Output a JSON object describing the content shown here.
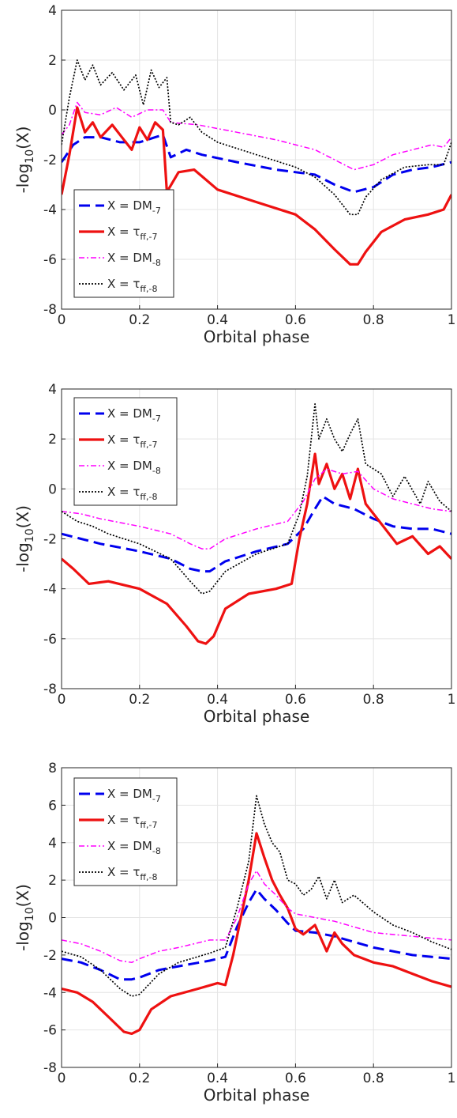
{
  "figure": {
    "panels_note_none": ""
  },
  "chart_data": [
    {
      "type": "line",
      "xlabel": "Orbital phase",
      "ylabel": "-log10(X)",
      "xlim": [
        0,
        1
      ],
      "ylim": [
        -8,
        4
      ],
      "xticks": [
        "0",
        "0.2",
        "0.4",
        "0.6",
        "0.8",
        "1"
      ],
      "yticks": [
        "-8",
        "-6",
        "-4",
        "-2",
        "0",
        "2",
        "4"
      ],
      "grid": true,
      "legend_position": "bottom-left",
      "series": [
        {
          "name": "X = DM-7",
          "color": "#0000ee",
          "style": "dashed",
          "x": [
            0,
            0.03,
            0.06,
            0.1,
            0.15,
            0.2,
            0.24,
            0.26,
            0.28,
            0.32,
            0.36,
            0.45,
            0.55,
            0.65,
            0.7,
            0.75,
            0.8,
            0.85,
            0.9,
            0.95,
            1
          ],
          "y": [
            -2.1,
            -1.4,
            -1.1,
            -1.1,
            -1.3,
            -1.3,
            -1.1,
            -1.0,
            -1.9,
            -1.6,
            -1.8,
            -2.1,
            -2.4,
            -2.6,
            -3.0,
            -3.3,
            -3.1,
            -2.6,
            -2.4,
            -2.3,
            -2.1
          ]
        },
        {
          "name": "X = τff,-7",
          "color": "#ee1111",
          "style": "solid",
          "x": [
            0,
            0.02,
            0.04,
            0.06,
            0.08,
            0.1,
            0.13,
            0.16,
            0.18,
            0.2,
            0.22,
            0.24,
            0.26,
            0.27,
            0.3,
            0.34,
            0.4,
            0.5,
            0.6,
            0.65,
            0.7,
            0.74,
            0.76,
            0.78,
            0.82,
            0.88,
            0.94,
            0.98,
            1
          ],
          "y": [
            -3.4,
            -1.8,
            0.1,
            -0.9,
            -0.5,
            -1.1,
            -0.6,
            -1.2,
            -1.6,
            -0.7,
            -1.2,
            -0.5,
            -0.8,
            -3.3,
            -2.5,
            -2.4,
            -3.2,
            -3.7,
            -4.2,
            -4.8,
            -5.6,
            -6.2,
            -6.2,
            -5.7,
            -4.9,
            -4.4,
            -4.2,
            -4.0,
            -3.4
          ]
        },
        {
          "name": "X = DM-8",
          "color": "#ff00ff",
          "style": "dashdot",
          "x": [
            0,
            0.02,
            0.04,
            0.06,
            0.1,
            0.14,
            0.18,
            0.22,
            0.26,
            0.28,
            0.35,
            0.45,
            0.55,
            0.65,
            0.7,
            0.75,
            0.8,
            0.85,
            0.9,
            0.95,
            0.98,
            1
          ],
          "y": [
            -1.0,
            -0.6,
            0.3,
            -0.1,
            -0.2,
            0.1,
            -0.3,
            0.0,
            0.0,
            -0.5,
            -0.6,
            -0.9,
            -1.2,
            -1.6,
            -2.0,
            -2.4,
            -2.2,
            -1.8,
            -1.6,
            -1.4,
            -1.5,
            -1.1
          ]
        },
        {
          "name": "X = τff,-8",
          "color": "#000000",
          "style": "dotted",
          "x": [
            0,
            0.02,
            0.04,
            0.06,
            0.08,
            0.1,
            0.13,
            0.16,
            0.19,
            0.21,
            0.23,
            0.25,
            0.27,
            0.28,
            0.3,
            0.33,
            0.36,
            0.4,
            0.5,
            0.6,
            0.65,
            0.7,
            0.74,
            0.76,
            0.78,
            0.82,
            0.88,
            0.94,
            0.98,
            1
          ],
          "y": [
            -1.4,
            0.5,
            2.0,
            1.2,
            1.8,
            1.0,
            1.5,
            0.8,
            1.4,
            0.2,
            1.6,
            0.9,
            1.3,
            -0.5,
            -0.6,
            -0.3,
            -0.9,
            -1.3,
            -1.8,
            -2.3,
            -2.7,
            -3.4,
            -4.2,
            -4.2,
            -3.5,
            -2.8,
            -2.3,
            -2.2,
            -2.2,
            -1.3
          ]
        }
      ]
    },
    {
      "type": "line",
      "xlabel": "Orbital phase",
      "ylabel": "-log10(X)",
      "xlim": [
        0,
        1
      ],
      "ylim": [
        -8,
        4
      ],
      "xticks": [
        "0",
        "0.2",
        "0.4",
        "0.6",
        "0.8",
        "1"
      ],
      "yticks": [
        "-8",
        "-6",
        "-4",
        "-2",
        "0",
        "2",
        "4"
      ],
      "grid": true,
      "legend_position": "top-left",
      "series": [
        {
          "name": "X = DM-7",
          "color": "#0000ee",
          "style": "dashed",
          "x": [
            0,
            0.05,
            0.1,
            0.2,
            0.28,
            0.33,
            0.36,
            0.38,
            0.42,
            0.5,
            0.58,
            0.62,
            0.65,
            0.67,
            0.7,
            0.75,
            0.8,
            0.85,
            0.9,
            0.95,
            1
          ],
          "y": [
            -1.8,
            -2.0,
            -2.2,
            -2.5,
            -2.8,
            -3.2,
            -3.3,
            -3.3,
            -2.9,
            -2.5,
            -2.2,
            -1.6,
            -0.8,
            -0.3,
            -0.6,
            -0.8,
            -1.2,
            -1.5,
            -1.6,
            -1.6,
            -1.8
          ]
        },
        {
          "name": "X = τff,-7",
          "color": "#ee1111",
          "style": "solid",
          "x": [
            0,
            0.03,
            0.07,
            0.12,
            0.2,
            0.27,
            0.32,
            0.35,
            0.37,
            0.39,
            0.42,
            0.48,
            0.55,
            0.59,
            0.61,
            0.63,
            0.65,
            0.66,
            0.68,
            0.7,
            0.72,
            0.74,
            0.76,
            0.78,
            0.82,
            0.86,
            0.9,
            0.94,
            0.97,
            1
          ],
          "y": [
            -2.8,
            -3.2,
            -3.8,
            -3.7,
            -4.0,
            -4.6,
            -5.5,
            -6.1,
            -6.2,
            -5.9,
            -4.8,
            -4.2,
            -4.0,
            -3.8,
            -2.0,
            -0.6,
            1.4,
            0.2,
            1.0,
            0.0,
            0.6,
            -0.4,
            0.8,
            -0.6,
            -1.4,
            -2.2,
            -1.9,
            -2.6,
            -2.3,
            -2.8
          ]
        },
        {
          "name": "X = DM-8",
          "color": "#ff00ff",
          "style": "dashdot",
          "x": [
            0,
            0.05,
            0.1,
            0.2,
            0.28,
            0.33,
            0.36,
            0.38,
            0.42,
            0.5,
            0.58,
            0.62,
            0.65,
            0.68,
            0.72,
            0.76,
            0.8,
            0.85,
            0.9,
            0.95,
            1
          ],
          "y": [
            -0.9,
            -1.0,
            -1.2,
            -1.5,
            -1.8,
            -2.2,
            -2.4,
            -2.4,
            -2.0,
            -1.6,
            -1.3,
            -0.5,
            0.4,
            0.8,
            0.6,
            0.7,
            0.0,
            -0.4,
            -0.6,
            -0.8,
            -0.9
          ]
        },
        {
          "name": "X = τff,-8",
          "color": "#000000",
          "style": "dotted",
          "x": [
            0,
            0.04,
            0.08,
            0.12,
            0.2,
            0.28,
            0.33,
            0.36,
            0.38,
            0.42,
            0.5,
            0.58,
            0.61,
            0.63,
            0.65,
            0.66,
            0.68,
            0.7,
            0.72,
            0.74,
            0.76,
            0.78,
            0.82,
            0.85,
            0.88,
            0.92,
            0.94,
            0.97,
            1
          ],
          "y": [
            -0.9,
            -1.3,
            -1.5,
            -1.8,
            -2.2,
            -2.8,
            -3.7,
            -4.2,
            -4.1,
            -3.3,
            -2.6,
            -2.2,
            -1.0,
            0.5,
            3.4,
            2.0,
            2.8,
            2.0,
            1.5,
            2.2,
            2.8,
            1.0,
            0.6,
            -0.3,
            0.5,
            -0.6,
            0.3,
            -0.5,
            -0.9
          ]
        }
      ]
    },
    {
      "type": "line",
      "xlabel": "Orbital phase",
      "ylabel": "-log10(X)",
      "xlim": [
        0,
        1
      ],
      "ylim": [
        -8,
        8
      ],
      "xticks": [
        "0",
        "0.2",
        "0.4",
        "0.6",
        "0.8",
        "1"
      ],
      "yticks": [
        "-8",
        "-6",
        "-4",
        "-2",
        "0",
        "2",
        "4",
        "6",
        "8"
      ],
      "grid": true,
      "legend_position": "top-left",
      "series": [
        {
          "name": "X = DM-7",
          "color": "#0000ee",
          "style": "dashed",
          "x": [
            0,
            0.05,
            0.1,
            0.15,
            0.18,
            0.2,
            0.25,
            0.3,
            0.38,
            0.42,
            0.45,
            0.48,
            0.5,
            0.52,
            0.55,
            0.58,
            0.6,
            0.65,
            0.7,
            0.75,
            0.8,
            0.9,
            1
          ],
          "y": [
            -2.2,
            -2.4,
            -2.8,
            -3.3,
            -3.3,
            -3.2,
            -2.8,
            -2.6,
            -2.3,
            -2.1,
            -0.5,
            0.8,
            1.5,
            1.0,
            0.4,
            -0.3,
            -0.7,
            -0.8,
            -1.0,
            -1.3,
            -1.6,
            -2.0,
            -2.2
          ]
        },
        {
          "name": "X = τff,-7",
          "color": "#ee1111",
          "style": "solid",
          "x": [
            0,
            0.04,
            0.08,
            0.12,
            0.16,
            0.18,
            0.2,
            0.23,
            0.28,
            0.35,
            0.4,
            0.42,
            0.44,
            0.46,
            0.48,
            0.5,
            0.52,
            0.54,
            0.56,
            0.58,
            0.6,
            0.62,
            0.65,
            0.68,
            0.7,
            0.72,
            0.75,
            0.8,
            0.85,
            0.9,
            0.95,
            1
          ],
          "y": [
            -3.8,
            -4.0,
            -4.5,
            -5.3,
            -6.1,
            -6.2,
            -6.0,
            -4.9,
            -4.2,
            -3.8,
            -3.5,
            -3.6,
            -2.0,
            0.0,
            2.0,
            4.5,
            3.2,
            2.0,
            1.2,
            0.5,
            -0.6,
            -0.9,
            -0.4,
            -1.8,
            -0.8,
            -1.4,
            -2.0,
            -2.4,
            -2.6,
            -3.0,
            -3.4,
            -3.7
          ]
        },
        {
          "name": "X = DM-8",
          "color": "#ff00ff",
          "style": "dashdot",
          "x": [
            0,
            0.05,
            0.1,
            0.15,
            0.18,
            0.2,
            0.25,
            0.3,
            0.38,
            0.42,
            0.45,
            0.48,
            0.5,
            0.52,
            0.55,
            0.58,
            0.6,
            0.65,
            0.7,
            0.75,
            0.8,
            0.9,
            1
          ],
          "y": [
            -1.2,
            -1.4,
            -1.8,
            -2.3,
            -2.4,
            -2.2,
            -1.8,
            -1.6,
            -1.2,
            -1.2,
            0.0,
            1.8,
            2.5,
            1.8,
            1.2,
            0.5,
            0.2,
            0.0,
            -0.2,
            -0.5,
            -0.8,
            -1.0,
            -1.2
          ]
        },
        {
          "name": "X = τff,-8",
          "color": "#000000",
          "style": "dotted",
          "x": [
            0,
            0.05,
            0.1,
            0.15,
            0.18,
            0.2,
            0.25,
            0.3,
            0.38,
            0.42,
            0.45,
            0.48,
            0.5,
            0.52,
            0.54,
            0.56,
            0.58,
            0.6,
            0.62,
            0.64,
            0.66,
            0.68,
            0.7,
            0.72,
            0.75,
            0.8,
            0.85,
            0.9,
            0.95,
            1
          ],
          "y": [
            -1.8,
            -2.1,
            -2.8,
            -3.8,
            -4.2,
            -4.1,
            -3.0,
            -2.4,
            -1.9,
            -1.6,
            0.5,
            3.0,
            6.5,
            5.0,
            4.0,
            3.5,
            2.0,
            1.8,
            1.2,
            1.5,
            2.2,
            1.0,
            2.0,
            0.8,
            1.2,
            0.3,
            -0.4,
            -0.8,
            -1.3,
            -1.7
          ]
        }
      ]
    }
  ]
}
